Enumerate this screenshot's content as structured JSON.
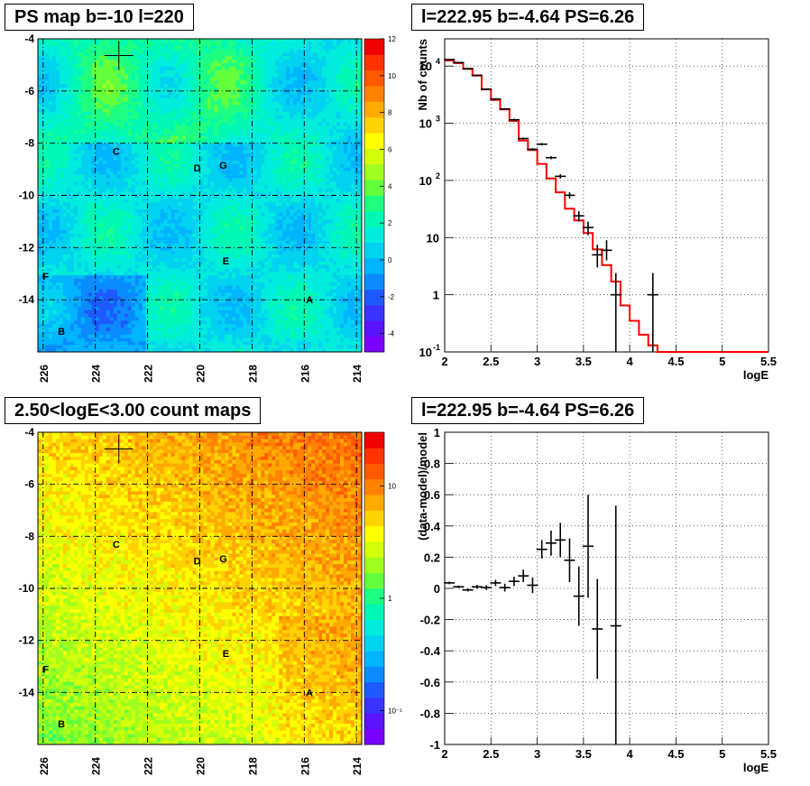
{
  "panels": {
    "ps_map": {
      "title": "PS map b=-10 l=220",
      "x_ticks": [
        "226",
        "224",
        "222",
        "220",
        "218",
        "216",
        "214"
      ],
      "y_ticks": [
        "-4",
        "-6",
        "-8",
        "-10",
        "-12",
        "-14"
      ],
      "colorbar_ticks": [
        "12",
        "10",
        "8",
        "6",
        "4",
        "2",
        "0",
        "-2",
        "-4"
      ],
      "source_labels": [
        "C",
        "D",
        "G",
        "F",
        "E",
        "A",
        "B"
      ]
    },
    "count_map": {
      "title": "2.50<logE<3.00 count maps",
      "x_ticks": [
        "226",
        "224",
        "222",
        "220",
        "218",
        "216",
        "214"
      ],
      "y_ticks": [
        "-4",
        "-6",
        "-8",
        "-10",
        "-12",
        "-14"
      ],
      "colorbar_ticks": [
        "10",
        "1",
        "10⁻¹"
      ],
      "source_labels": [
        "C",
        "D",
        "G",
        "F",
        "E",
        "A",
        "B"
      ]
    },
    "spectrum": {
      "title": "l=222.95 b=-4.64 PS=6.26"
    },
    "residual": {
      "title": "l=222.95 b=-4.64 PS=6.26"
    }
  },
  "chart_data": [
    {
      "type": "heatmap",
      "title": "PS map b=-10 l=220",
      "xlabel": "",
      "ylabel": "",
      "xlim": [
        226.2,
        213.8
      ],
      "ylim": [
        -16,
        -4
      ],
      "x_ticks": [
        226,
        224,
        222,
        220,
        218,
        216,
        214
      ],
      "y_ticks": [
        -4,
        -6,
        -8,
        -10,
        -12,
        -14
      ],
      "color_range": [
        -5,
        12
      ],
      "colorbar_ticks": [
        12,
        10,
        8,
        6,
        4,
        2,
        0,
        -2,
        -4
      ],
      "grid": true,
      "marker": {
        "l": 223.1,
        "b": -4.64,
        "symbol": "+"
      },
      "sources": [
        {
          "label": "C",
          "l": 223.2,
          "b": -8.3
        },
        {
          "label": "D",
          "l": 220.1,
          "b": -8.95
        },
        {
          "label": "G",
          "l": 219.1,
          "b": -8.85
        },
        {
          "label": "F",
          "l": 225.9,
          "b": -13.1
        },
        {
          "label": "E",
          "l": 219.0,
          "b": -12.5
        },
        {
          "label": "A",
          "l": 215.8,
          "b": -14.0
        },
        {
          "label": "B",
          "l": 225.3,
          "b": -15.2
        }
      ]
    },
    {
      "type": "line",
      "title": "l=222.95 b=-4.64 PS=6.26",
      "xlabel": "logE",
      "ylabel": "Nb of counts",
      "xlim": [
        2,
        5.5
      ],
      "ylim": [
        0.1,
        30000
      ],
      "y_scale": "log",
      "x_ticks": [
        2,
        2.5,
        3,
        3.5,
        4,
        4.5,
        5,
        5.5
      ],
      "y_ticks": [
        0.1,
        1,
        10,
        100,
        1000,
        10000
      ],
      "grid": true,
      "series": [
        {
          "name": "",
          "kind": "step",
          "color": "#ff0000",
          "bin_edges": [
            2,
            2.1,
            2.2,
            2.3,
            2.4,
            2.5,
            2.6,
            2.7,
            2.8,
            2.9,
            3.0,
            3.1,
            3.2,
            3.3,
            3.4,
            3.5,
            3.6,
            3.7,
            3.8,
            3.9,
            4.0,
            4.1,
            4.2,
            4.3,
            4.4,
            4.5,
            4.6,
            4.7,
            4.8,
            4.9,
            5.0,
            5.1,
            5.2,
            5.3,
            5.4,
            5.5
          ],
          "values": [
            12500,
            11300,
            8900,
            6800,
            3900,
            2550,
            1750,
            1100,
            500,
            340,
            195,
            108,
            62,
            32,
            20,
            12,
            6.2,
            3.3,
            1.7,
            0.65,
            0.35,
            0.2,
            0.13,
            0.1,
            0.1,
            0.1,
            0.1,
            0.1,
            0.1,
            0.1,
            0.1,
            0.1,
            0.1,
            0.1,
            0.1
          ]
        },
        {
          "name": "",
          "kind": "errorbar",
          "color": "#000000",
          "points": [
            {
              "x": 2.05,
              "y": 13000,
              "lo": 12800,
              "hi": 13200
            },
            {
              "x": 2.15,
              "y": 11500,
              "lo": 11300,
              "hi": 11700
            },
            {
              "x": 2.25,
              "y": 9000,
              "lo": 8850,
              "hi": 9150
            },
            {
              "x": 2.35,
              "y": 6900,
              "lo": 6750,
              "hi": 7050
            },
            {
              "x": 2.45,
              "y": 3950,
              "lo": 3850,
              "hi": 4050
            },
            {
              "x": 2.55,
              "y": 2650,
              "lo": 2550,
              "hi": 2750
            },
            {
              "x": 2.65,
              "y": 1780,
              "lo": 1720,
              "hi": 1840
            },
            {
              "x": 2.75,
              "y": 1150,
              "lo": 1100,
              "hi": 1200
            },
            {
              "x": 2.85,
              "y": 540,
              "lo": 515,
              "hi": 565
            },
            {
              "x": 2.95,
              "y": 350,
              "lo": 330,
              "hi": 370
            },
            {
              "x": 3.05,
              "y": 430,
              "lo": 410,
              "hi": 450
            },
            {
              "x": 3.15,
              "y": 250,
              "lo": 235,
              "hi": 265
            },
            {
              "x": 3.25,
              "y": 118,
              "lo": 108,
              "hi": 128
            },
            {
              "x": 3.35,
              "y": 55,
              "lo": 48,
              "hi": 62
            },
            {
              "x": 3.45,
              "y": 24,
              "lo": 19,
              "hi": 29
            },
            {
              "x": 3.55,
              "y": 15,
              "lo": 11,
              "hi": 19
            },
            {
              "x": 3.65,
              "y": 5,
              "lo": 3,
              "hi": 7.5
            },
            {
              "x": 3.75,
              "y": 6,
              "lo": 4,
              "hi": 9
            },
            {
              "x": 3.85,
              "y": 1,
              "lo": 0.1,
              "hi": 2.4
            },
            {
              "x": 4.25,
              "y": 1,
              "lo": 0.1,
              "hi": 2.4
            }
          ]
        }
      ]
    },
    {
      "type": "scatter",
      "title": "l=222.95 b=-4.64 PS=6.26",
      "xlabel": "logE",
      "ylabel": "(data-model)/model",
      "xlim": [
        2,
        5.5
      ],
      "ylim": [
        -1,
        1
      ],
      "x_ticks": [
        2,
        2.5,
        3,
        3.5,
        4,
        4.5,
        5,
        5.5
      ],
      "y_ticks": [
        1,
        0.8,
        0.6,
        0.4,
        0.2,
        0,
        -0.2,
        -0.4,
        -0.6,
        -0.8,
        -1
      ],
      "grid": true,
      "points": [
        {
          "x": 2.05,
          "y": 0.035,
          "err": 0.008
        },
        {
          "x": 2.15,
          "y": 0.01,
          "err": 0.008
        },
        {
          "x": 2.25,
          "y": -0.01,
          "err": 0.01
        },
        {
          "x": 2.35,
          "y": 0.01,
          "err": 0.012
        },
        {
          "x": 2.45,
          "y": 0.005,
          "err": 0.015
        },
        {
          "x": 2.55,
          "y": 0.035,
          "err": 0.02
        },
        {
          "x": 2.65,
          "y": 0.005,
          "err": 0.025
        },
        {
          "x": 2.75,
          "y": 0.045,
          "err": 0.03
        },
        {
          "x": 2.85,
          "y": 0.08,
          "err": 0.04
        },
        {
          "x": 2.95,
          "y": 0.02,
          "err": 0.05
        },
        {
          "x": 3.05,
          "y": 0.25,
          "err": 0.06
        },
        {
          "x": 3.15,
          "y": 0.29,
          "err": 0.08
        },
        {
          "x": 3.25,
          "y": 0.31,
          "err": 0.11
        },
        {
          "x": 3.35,
          "y": 0.18,
          "err": 0.14
        },
        {
          "x": 3.45,
          "y": -0.05,
          "err": 0.19
        },
        {
          "x": 3.55,
          "y": 0.27,
          "err": 0.33
        },
        {
          "x": 3.65,
          "y": -0.26,
          "err": 0.32
        },
        {
          "x": 3.85,
          "y": -0.24,
          "err": 0.77
        }
      ]
    },
    {
      "type": "heatmap",
      "title": "2.50<logE<3.00 count maps",
      "xlabel": "",
      "ylabel": "",
      "xlim": [
        226.2,
        213.8
      ],
      "ylim": [
        -16,
        -4
      ],
      "x_ticks": [
        226,
        224,
        222,
        220,
        218,
        216,
        214
      ],
      "y_ticks": [
        -4,
        -6,
        -8,
        -10,
        -12,
        -14
      ],
      "color_scale": "log",
      "color_range": [
        0.05,
        30
      ],
      "colorbar_ticks": [
        10,
        1,
        0.1
      ],
      "grid": true,
      "marker": {
        "l": 223.1,
        "b": -4.64,
        "symbol": "+"
      },
      "sources": [
        {
          "label": "C",
          "l": 223.2,
          "b": -8.3
        },
        {
          "label": "D",
          "l": 220.1,
          "b": -8.95
        },
        {
          "label": "G",
          "l": 219.1,
          "b": -8.85
        },
        {
          "label": "F",
          "l": 225.9,
          "b": -13.1
        },
        {
          "label": "E",
          "l": 219.0,
          "b": -12.5
        },
        {
          "label": "A",
          "l": 215.8,
          "b": -14.0
        },
        {
          "label": "B",
          "l": 225.3,
          "b": -15.2
        }
      ]
    }
  ]
}
